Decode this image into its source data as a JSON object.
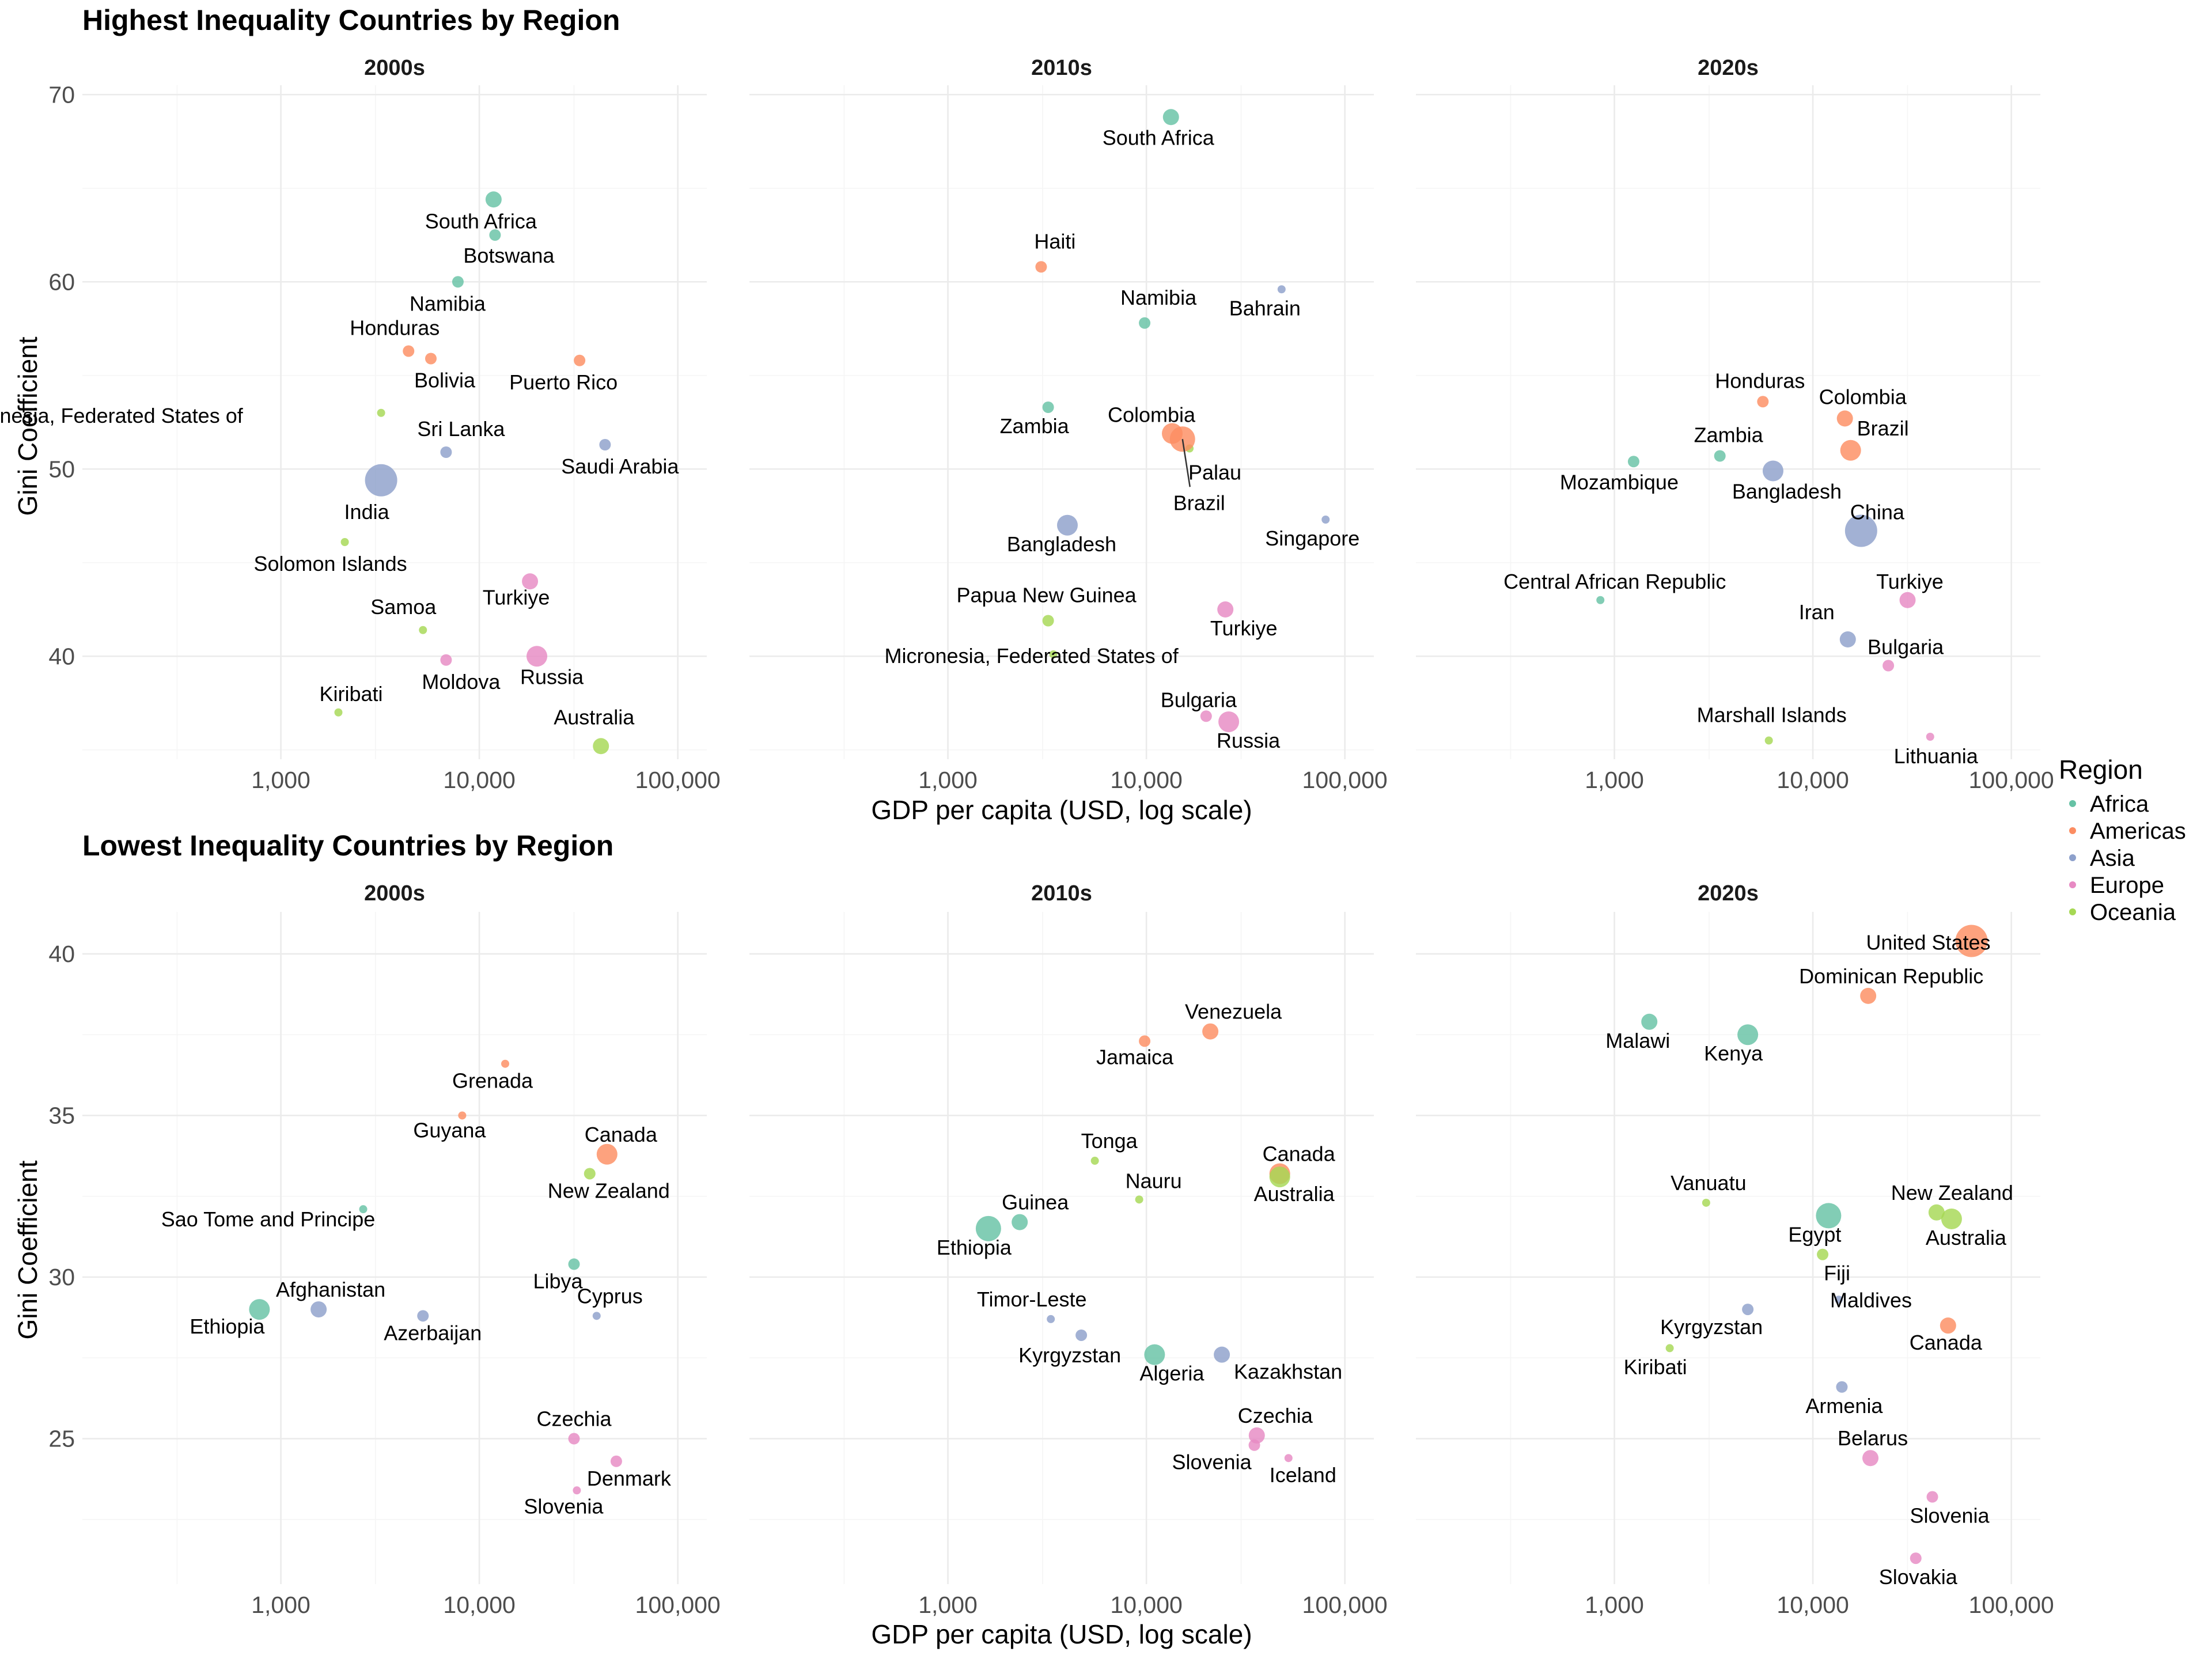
{
  "colors": {
    "Africa": "#66c2a5",
    "Americas": "#fc8d62",
    "Asia": "#8da0cb",
    "Europe": "#e78ac3",
    "Oceania": "#a6d854",
    "grid": "#ebebeb"
  },
  "legend": {
    "title": "Region",
    "items": [
      "Africa",
      "Americas",
      "Asia",
      "Europe",
      "Oceania"
    ]
  },
  "chart_data": [
    {
      "type": "scatter",
      "title": "Highest Inequality Countries by Region",
      "xlabel": "GDP per capita (USD, log scale)",
      "ylabel": "Gini Coefficient",
      "x_scale": "log",
      "xlim": [
        100,
        140000
      ],
      "ylim": [
        34.5,
        70.5
      ],
      "xticks": [
        1000,
        10000,
        100000
      ],
      "xtick_labels": [
        "1,000",
        "10,000",
        "100,000"
      ],
      "yticks": [
        40,
        50,
        60,
        70
      ],
      "ytick_labels": [
        "40",
        "50",
        "60",
        "70"
      ],
      "grid": true,
      "legend_position": "right",
      "panels": [
        {
          "title": "2000s",
          "points": [
            {
              "label": "South Africa",
              "region": "Africa",
              "x": 11800,
              "y": 64.4,
              "size": 3
            },
            {
              "label": "Botswana",
              "region": "Africa",
              "x": 12000,
              "y": 62.5,
              "size": 2
            },
            {
              "label": "Namibia",
              "region": "Africa",
              "x": 7800,
              "y": 60.0,
              "size": 2
            },
            {
              "label": "Honduras",
              "region": "Americas",
              "x": 4400,
              "y": 56.3,
              "size": 2
            },
            {
              "label": "Bolivia",
              "region": "Americas",
              "x": 5700,
              "y": 55.9,
              "size": 2
            },
            {
              "label": "Puerto Rico",
              "region": "Americas",
              "x": 32000,
              "y": 55.8,
              "size": 2
            },
            {
              "label": "Micronesia, Federated States of",
              "region": "Oceania",
              "x": 3200,
              "y": 53.0,
              "size": 1
            },
            {
              "label": "Sri Lanka",
              "region": "Asia",
              "x": 6800,
              "y": 50.9,
              "size": 2
            },
            {
              "label": "Saudi Arabia",
              "region": "Asia",
              "x": 43000,
              "y": 51.3,
              "size": 2
            },
            {
              "label": "India",
              "region": "Asia",
              "x": 3200,
              "y": 49.4,
              "size": 6
            },
            {
              "label": "Solomon Islands",
              "region": "Oceania",
              "x": 2100,
              "y": 46.1,
              "size": 1
            },
            {
              "label": "Turkiye",
              "region": "Europe",
              "x": 18000,
              "y": 44.0,
              "size": 3
            },
            {
              "label": "Samoa",
              "region": "Oceania",
              "x": 5200,
              "y": 41.4,
              "size": 1
            },
            {
              "label": "Moldova",
              "region": "Europe",
              "x": 6800,
              "y": 39.8,
              "size": 2
            },
            {
              "label": "Russia",
              "region": "Europe",
              "x": 19500,
              "y": 40.0,
              "size": 4
            },
            {
              "label": "Kiribati",
              "region": "Oceania",
              "x": 1950,
              "y": 37.0,
              "size": 1
            },
            {
              "label": "Australia",
              "region": "Oceania",
              "x": 41000,
              "y": 35.2,
              "size": 3
            }
          ]
        },
        {
          "title": "2010s",
          "points": [
            {
              "label": "South Africa",
              "region": "Africa",
              "x": 13300,
              "y": 68.8,
              "size": 3
            },
            {
              "label": "Haiti",
              "region": "Americas",
              "x": 2950,
              "y": 60.8,
              "size": 2
            },
            {
              "label": "Namibia",
              "region": "Africa",
              "x": 9800,
              "y": 57.8,
              "size": 2
            },
            {
              "label": "Bahrain",
              "region": "Asia",
              "x": 48000,
              "y": 59.6,
              "size": 1
            },
            {
              "label": "Zambia",
              "region": "Africa",
              "x": 3200,
              "y": 53.3,
              "size": 2
            },
            {
              "label": "Colombia",
              "region": "Americas",
              "x": 13500,
              "y": 51.9,
              "size": 4
            },
            {
              "label": "Palau",
              "region": "Oceania",
              "x": 16500,
              "y": 51.1,
              "size": 1
            },
            {
              "label": "Brazil",
              "region": "Americas",
              "x": 15200,
              "y": 51.6,
              "size": 5
            },
            {
              "label": "Bangladesh",
              "region": "Asia",
              "x": 4000,
              "y": 47.0,
              "size": 4
            },
            {
              "label": "Singapore",
              "region": "Asia",
              "x": 80000,
              "y": 47.3,
              "size": 1
            },
            {
              "label": "Papua New Guinea",
              "region": "Oceania",
              "x": 3200,
              "y": 41.9,
              "size": 2
            },
            {
              "label": "Turkiye",
              "region": "Europe",
              "x": 25000,
              "y": 42.5,
              "size": 3
            },
            {
              "label": "Micronesia, Federated States of",
              "region": "Oceania",
              "x": 3400,
              "y": 40.1,
              "size": 1
            },
            {
              "label": "Bulgaria",
              "region": "Europe",
              "x": 20000,
              "y": 36.8,
              "size": 2
            },
            {
              "label": "Russia",
              "region": "Europe",
              "x": 26000,
              "y": 36.5,
              "size": 4
            }
          ]
        },
        {
          "title": "2020s",
          "points": [
            {
              "label": "Honduras",
              "region": "Americas",
              "x": 5600,
              "y": 53.6,
              "size": 2
            },
            {
              "label": "Colombia",
              "region": "Americas",
              "x": 14500,
              "y": 52.7,
              "size": 3
            },
            {
              "label": "Brazil",
              "region": "Americas",
              "x": 15500,
              "y": 51.0,
              "size": 4
            },
            {
              "label": "Zambia",
              "region": "Africa",
              "x": 3400,
              "y": 50.7,
              "size": 2
            },
            {
              "label": "Mozambique",
              "region": "Africa",
              "x": 1250,
              "y": 50.4,
              "size": 2
            },
            {
              "label": "Bangladesh",
              "region": "Asia",
              "x": 6300,
              "y": 49.9,
              "size": 4
            },
            {
              "label": "China",
              "region": "Asia",
              "x": 17500,
              "y": 46.7,
              "size": 6
            },
            {
              "label": "Central African Republic",
              "region": "Africa",
              "x": 850,
              "y": 43.0,
              "size": 1
            },
            {
              "label": "Turkiye",
              "region": "Europe",
              "x": 30000,
              "y": 43.0,
              "size": 3
            },
            {
              "label": "Iran",
              "region": "Asia",
              "x": 15000,
              "y": 40.9,
              "size": 3
            },
            {
              "label": "Bulgaria",
              "region": "Europe",
              "x": 24000,
              "y": 39.5,
              "size": 2
            },
            {
              "label": "Marshall Islands",
              "region": "Oceania",
              "x": 6000,
              "y": 35.5,
              "size": 1
            },
            {
              "label": "Lithuania",
              "region": "Europe",
              "x": 39000,
              "y": 35.7,
              "size": 1
            }
          ]
        }
      ]
    },
    {
      "type": "scatter",
      "title": "Lowest Inequality Countries by Region",
      "xlabel": "GDP per capita (USD, log scale)",
      "ylabel": "Gini Coefficient",
      "x_scale": "log",
      "xlim": [
        100,
        140000
      ],
      "ylim": [
        20.5,
        41.3
      ],
      "xticks": [
        1000,
        10000,
        100000
      ],
      "xtick_labels": [
        "1,000",
        "10,000",
        "100,000"
      ],
      "yticks": [
        25,
        30,
        35,
        40
      ],
      "ytick_labels": [
        "25",
        "30",
        "35",
        "40"
      ],
      "grid": true,
      "legend_position": "right",
      "panels": [
        {
          "title": "2000s",
          "points": [
            {
              "label": "Grenada",
              "region": "Americas",
              "x": 13500,
              "y": 36.6,
              "size": 1
            },
            {
              "label": "Guyana",
              "region": "Americas",
              "x": 8200,
              "y": 35.0,
              "size": 1
            },
            {
              "label": "Canada",
              "region": "Americas",
              "x": 44000,
              "y": 33.8,
              "size": 4
            },
            {
              "label": "New Zealand",
              "region": "Oceania",
              "x": 36000,
              "y": 33.2,
              "size": 2
            },
            {
              "label": "Sao Tome and Principe",
              "region": "Africa",
              "x": 2600,
              "y": 32.1,
              "size": 1
            },
            {
              "label": "Libya",
              "region": "Africa",
              "x": 30000,
              "y": 30.4,
              "size": 2
            },
            {
              "label": "Afghanistan",
              "region": "Asia",
              "x": 1550,
              "y": 29.0,
              "size": 3
            },
            {
              "label": "Ethiopia",
              "region": "Africa",
              "x": 780,
              "y": 29.0,
              "size": 4
            },
            {
              "label": "Azerbaijan",
              "region": "Asia",
              "x": 5200,
              "y": 28.8,
              "size": 2
            },
            {
              "label": "Cyprus",
              "region": "Asia",
              "x": 39000,
              "y": 28.8,
              "size": 1
            },
            {
              "label": "Czechia",
              "region": "Europe",
              "x": 30000,
              "y": 25.0,
              "size": 2
            },
            {
              "label": "Denmark",
              "region": "Europe",
              "x": 49000,
              "y": 24.3,
              "size": 2
            },
            {
              "label": "Slovenia",
              "region": "Europe",
              "x": 31000,
              "y": 23.4,
              "size": 1
            }
          ]
        },
        {
          "title": "2010s",
          "points": [
            {
              "label": "Venezuela",
              "region": "Americas",
              "x": 21000,
              "y": 37.6,
              "size": 3
            },
            {
              "label": "Jamaica",
              "region": "Americas",
              "x": 9800,
              "y": 37.3,
              "size": 2
            },
            {
              "label": "Tonga",
              "region": "Oceania",
              "x": 5500,
              "y": 33.6,
              "size": 1
            },
            {
              "label": "Canada",
              "region": "Americas",
              "x": 47000,
              "y": 33.2,
              "size": 4
            },
            {
              "label": "Australia",
              "region": "Oceania",
              "x": 47000,
              "y": 33.1,
              "size": 4
            },
            {
              "label": "Nauru",
              "region": "Oceania",
              "x": 9200,
              "y": 32.4,
              "size": 1
            },
            {
              "label": "Guinea",
              "region": "Africa",
              "x": 2300,
              "y": 31.7,
              "size": 3
            },
            {
              "label": "Ethiopia",
              "region": "Africa",
              "x": 1600,
              "y": 31.5,
              "size": 5
            },
            {
              "label": "Timor-Leste",
              "region": "Asia",
              "x": 3300,
              "y": 28.7,
              "size": 1
            },
            {
              "label": "Kyrgyzstan",
              "region": "Asia",
              "x": 4700,
              "y": 28.2,
              "size": 2
            },
            {
              "label": "Algeria",
              "region": "Africa",
              "x": 11000,
              "y": 27.6,
              "size": 4
            },
            {
              "label": "Kazakhstan",
              "region": "Asia",
              "x": 24000,
              "y": 27.6,
              "size": 3
            },
            {
              "label": "Czechia",
              "region": "Europe",
              "x": 36000,
              "y": 25.1,
              "size": 3
            },
            {
              "label": "Slovenia",
              "region": "Europe",
              "x": 35000,
              "y": 24.8,
              "size": 2
            },
            {
              "label": "Iceland",
              "region": "Europe",
              "x": 52000,
              "y": 24.4,
              "size": 1
            }
          ]
        },
        {
          "title": "2020s",
          "points": [
            {
              "label": "United States",
              "region": "Americas",
              "x": 63000,
              "y": 40.4,
              "size": 6
            },
            {
              "label": "Dominican Republic",
              "region": "Americas",
              "x": 19000,
              "y": 38.7,
              "size": 3
            },
            {
              "label": "Malawi",
              "region": "Africa",
              "x": 1500,
              "y": 37.9,
              "size": 3
            },
            {
              "label": "Kenya",
              "region": "Africa",
              "x": 4700,
              "y": 37.5,
              "size": 4
            },
            {
              "label": "Vanuatu",
              "region": "Oceania",
              "x": 2900,
              "y": 32.3,
              "size": 1
            },
            {
              "label": "New Zealand",
              "region": "Oceania",
              "x": 42000,
              "y": 32.0,
              "size": 3
            },
            {
              "label": "Egypt",
              "region": "Africa",
              "x": 12000,
              "y": 31.9,
              "size": 5
            },
            {
              "label": "Australia",
              "region": "Oceania",
              "x": 50000,
              "y": 31.8,
              "size": 4
            },
            {
              "label": "Fiji",
              "region": "Oceania",
              "x": 11200,
              "y": 30.7,
              "size": 2
            },
            {
              "label": "Maldives",
              "region": "Asia",
              "x": 13500,
              "y": 29.3,
              "size": 1
            },
            {
              "label": "Kyrgyzstan",
              "region": "Asia",
              "x": 4700,
              "y": 29.0,
              "size": 2
            },
            {
              "label": "Canada",
              "region": "Americas",
              "x": 48000,
              "y": 28.5,
              "size": 3
            },
            {
              "label": "Kiribati",
              "region": "Oceania",
              "x": 1900,
              "y": 27.8,
              "size": 1
            },
            {
              "label": "Armenia",
              "region": "Asia",
              "x": 14000,
              "y": 26.6,
              "size": 2
            },
            {
              "label": "Belarus",
              "region": "Europe",
              "x": 19500,
              "y": 24.4,
              "size": 3
            },
            {
              "label": "Slovenia",
              "region": "Europe",
              "x": 40000,
              "y": 23.2,
              "size": 2
            },
            {
              "label": "Slovakia",
              "region": "Europe",
              "x": 33000,
              "y": 21.3,
              "size": 2
            }
          ]
        }
      ]
    }
  ]
}
